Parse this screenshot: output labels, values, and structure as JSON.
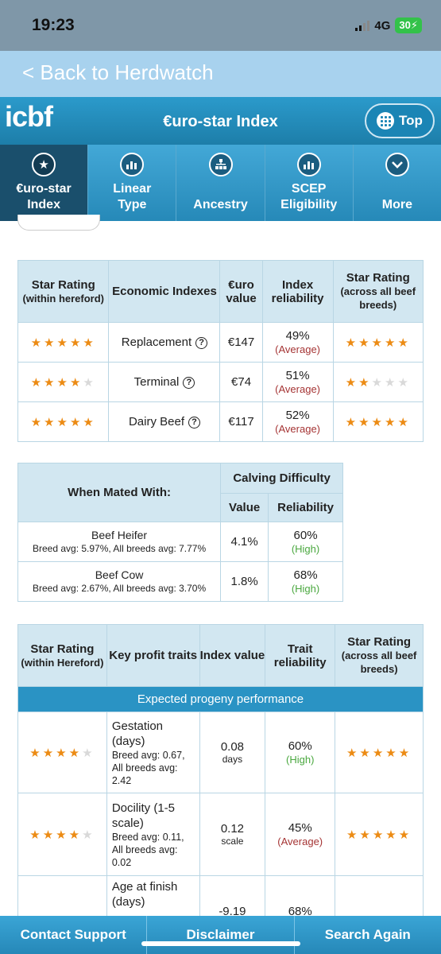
{
  "status_bar": {
    "time": "19:23",
    "network": "4G",
    "battery": "30"
  },
  "back": {
    "label": "< Back to Herdwatch"
  },
  "header": {
    "logo": "icbf",
    "title": "€uro-star Index",
    "top_label": "Top"
  },
  "tabs": [
    {
      "label": "€uro-star Index",
      "icon": "star-icon"
    },
    {
      "label": "Linear Type",
      "icon": "bar-chart-icon"
    },
    {
      "label": "Ancestry",
      "icon": "family-tree-icon"
    },
    {
      "label": "SCEP Eligibility",
      "icon": "bar-chart-icon"
    },
    {
      "label": "More",
      "icon": "chevron-down-icon"
    }
  ],
  "index_table": {
    "headers": {
      "star_rating": "Star Rating",
      "star_rating_sub": "(within hereford)",
      "economic": "Economic Indexes",
      "value": "€uro value",
      "reliability": "Index reliability",
      "star_rating_all": "Star Rating",
      "star_rating_all_sub": "(across all beef breeds)"
    },
    "rows": [
      {
        "index": "Replacement",
        "value": "€147",
        "rel": "49%",
        "rel_label": "(Average)",
        "stars_within": 5,
        "stars_all": 5
      },
      {
        "index": "Terminal",
        "value": "€74",
        "rel": "51%",
        "rel_label": "(Average)",
        "stars_within": 4,
        "stars_all": 2
      },
      {
        "index": "Dairy Beef",
        "value": "€117",
        "rel": "52%",
        "rel_label": "(Average)",
        "stars_within": 5,
        "stars_all": 5
      }
    ]
  },
  "calving_table": {
    "headers": {
      "mated": "When Mated With:",
      "calving": "Calving Difficulty",
      "value": "Value",
      "reliability": "Reliability"
    },
    "rows": [
      {
        "name": "Beef Heifer",
        "avg": "Breed avg: 5.97%, All breeds avg: 7.77%",
        "value": "4.1%",
        "rel": "60%",
        "rel_label": "(High)"
      },
      {
        "name": "Beef Cow",
        "avg": "Breed avg: 2.67%, All breeds avg: 3.70%",
        "value": "1.8%",
        "rel": "68%",
        "rel_label": "(High)"
      }
    ]
  },
  "traits_table": {
    "headers": {
      "star_rating": "Star Rating",
      "star_rating_sub": "(within Hereford)",
      "traits": "Key profit traits",
      "value": "Index value",
      "reliability": "Trait reliability",
      "star_rating_all": "Star Rating",
      "star_rating_all_sub": "(across all beef breeds)"
    },
    "section": "Expected progeny performance",
    "rows": [
      {
        "name": "Gestation (days)",
        "avg1": "Breed avg: 0.67,",
        "avg2": "All breeds avg: 2.42",
        "value": "0.08",
        "unit": "days",
        "rel": "60%",
        "rel_label": "(High)",
        "stars_within": 4,
        "stars_all": 5
      },
      {
        "name": "Docility (1-5 scale)",
        "avg1": "Breed avg: 0.11,",
        "avg2": "All breeds avg: 0.02",
        "value": "0.12",
        "unit": "scale",
        "rel": "45%",
        "rel_label": "(Average)",
        "stars_within": 4,
        "stars_all": 5
      },
      {
        "name": "Age at finish (days)",
        "value": "-9.19",
        "rel": "68%"
      }
    ]
  },
  "bottom_bar": {
    "contact": "Contact Support",
    "disclaimer": "Disclaimer",
    "search": "Search Again"
  }
}
